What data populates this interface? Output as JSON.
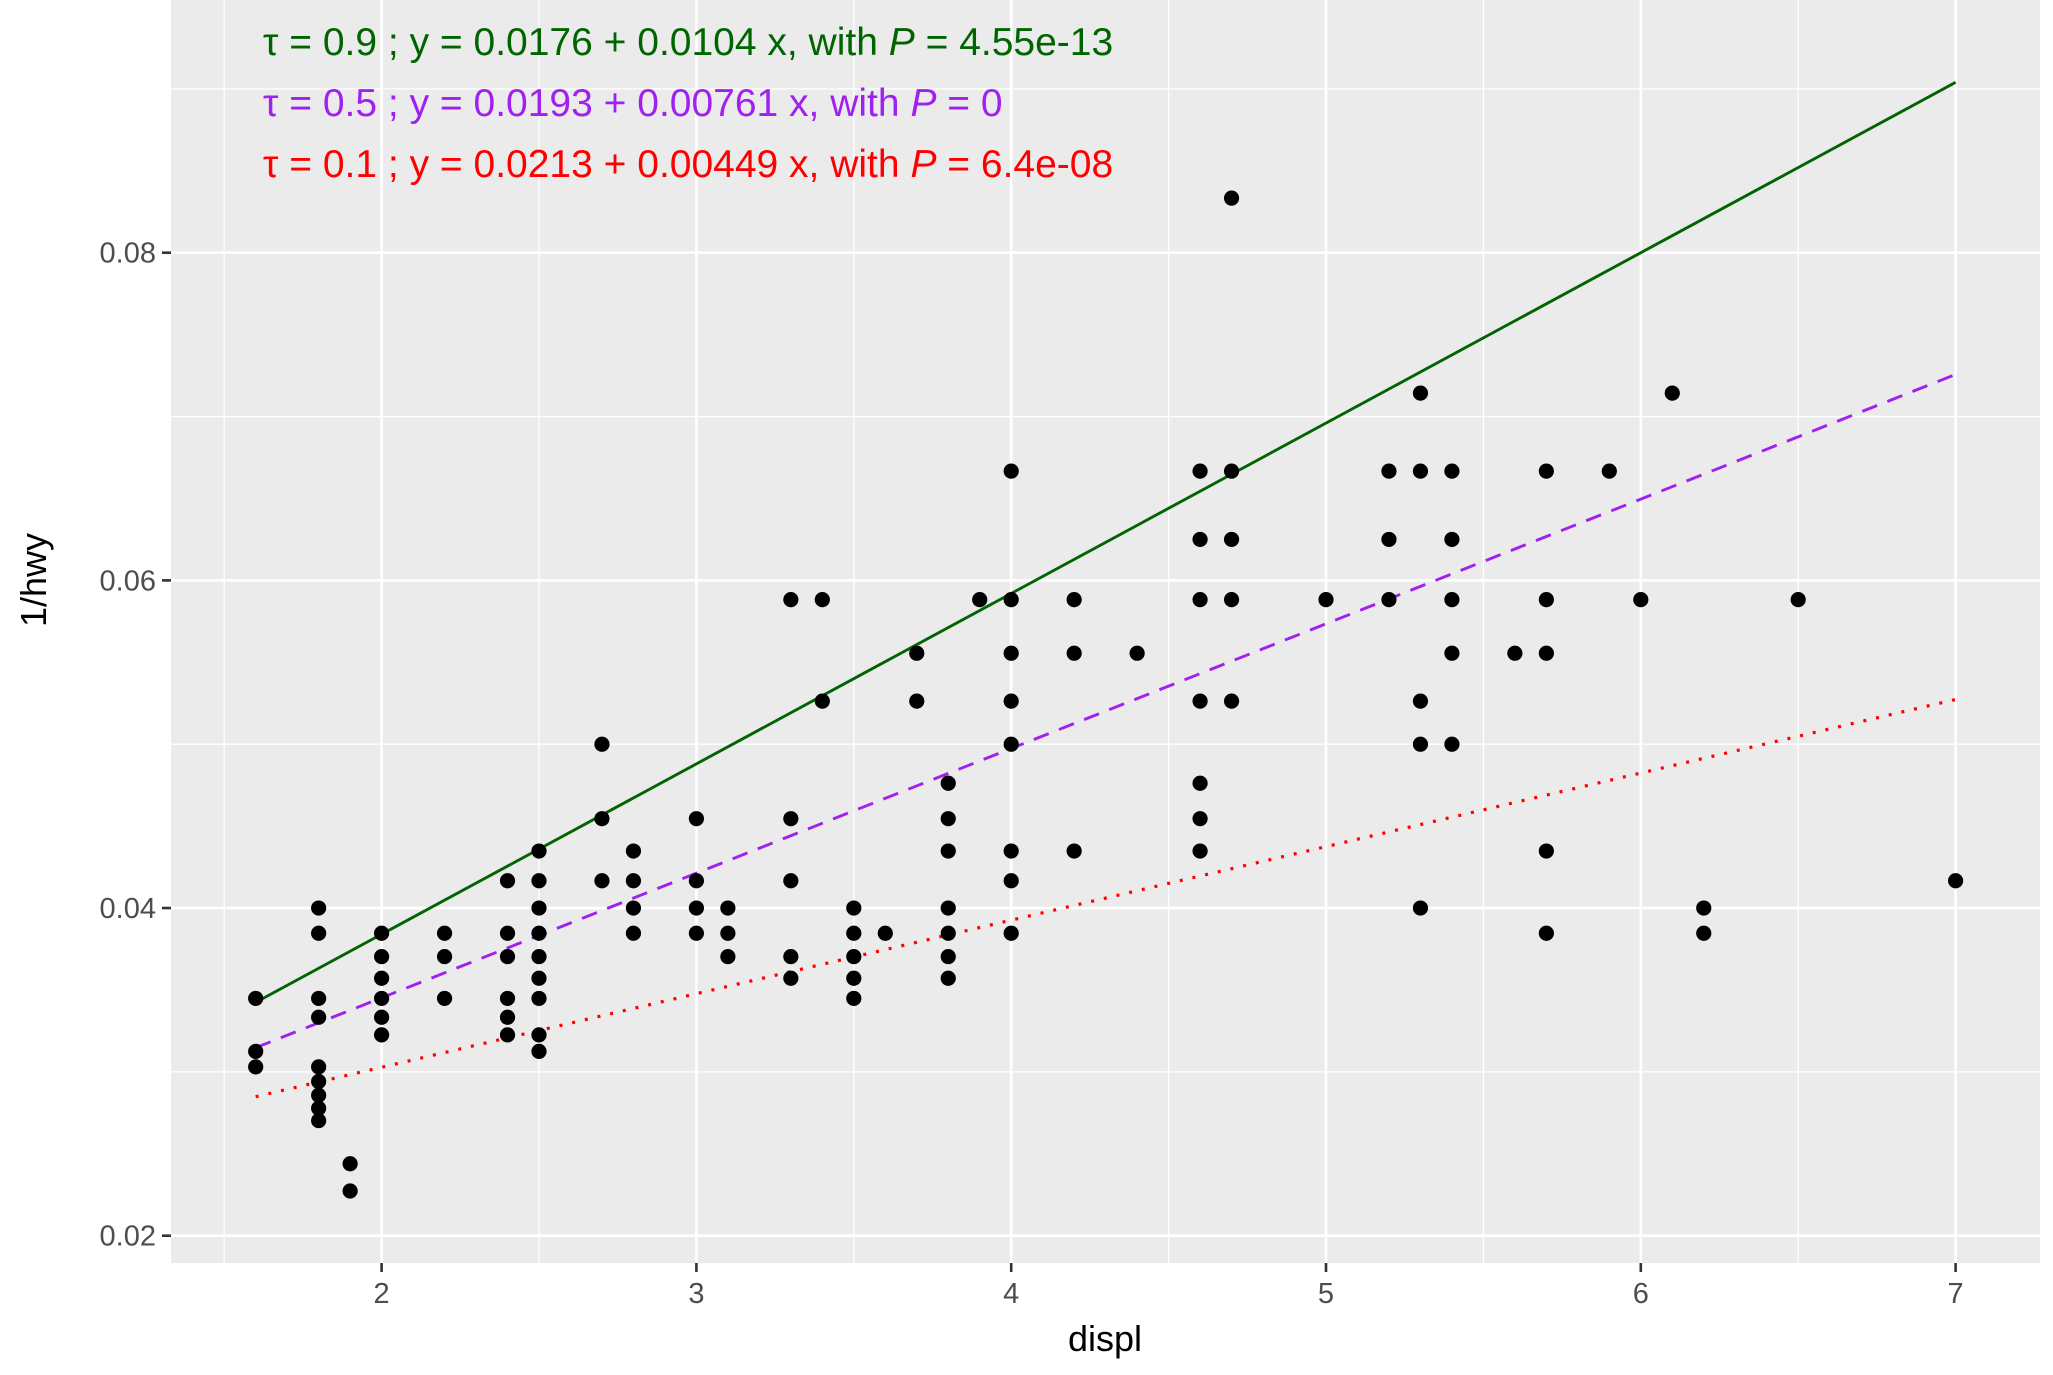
{
  "chart_data": {
    "type": "scatter",
    "title": "",
    "xlabel": "displ",
    "ylabel": "1/hwy",
    "xlim": [
      1.33,
      7.27
    ],
    "ylim": [
      0.0183,
      0.0933
    ],
    "x_ticks": [
      2,
      3,
      4,
      5,
      6,
      7
    ],
    "x_tick_labels": [
      "2",
      "3",
      "4",
      "5",
      "6",
      "7"
    ],
    "y_ticks": [
      0.02,
      0.04,
      0.06,
      0.08
    ],
    "y_tick_labels": [
      "0.02",
      "0.04",
      "0.06",
      "0.08"
    ],
    "grid": true,
    "legend": "none",
    "background": "#EBEBEB",
    "points_note": "y = 1/hwy for unique (displ, hwy) pairs",
    "points": [
      [
        1.6,
        29
      ],
      [
        1.6,
        32
      ],
      [
        1.6,
        33
      ],
      [
        1.8,
        25
      ],
      [
        1.8,
        26
      ],
      [
        1.8,
        29
      ],
      [
        1.8,
        30
      ],
      [
        1.8,
        33
      ],
      [
        1.8,
        34
      ],
      [
        1.8,
        35
      ],
      [
        1.8,
        36
      ],
      [
        1.8,
        37
      ],
      [
        1.9,
        41
      ],
      [
        1.9,
        44
      ],
      [
        2.0,
        26
      ],
      [
        2.0,
        27
      ],
      [
        2.0,
        28
      ],
      [
        2.0,
        29
      ],
      [
        2.0,
        30
      ],
      [
        2.0,
        31
      ],
      [
        2.2,
        26
      ],
      [
        2.2,
        27
      ],
      [
        2.2,
        29
      ],
      [
        2.4,
        24
      ],
      [
        2.4,
        26
      ],
      [
        2.4,
        27
      ],
      [
        2.4,
        29
      ],
      [
        2.4,
        30
      ],
      [
        2.4,
        31
      ],
      [
        2.5,
        23
      ],
      [
        2.5,
        24
      ],
      [
        2.5,
        25
      ],
      [
        2.5,
        26
      ],
      [
        2.5,
        27
      ],
      [
        2.5,
        28
      ],
      [
        2.5,
        29
      ],
      [
        2.5,
        31
      ],
      [
        2.5,
        32
      ],
      [
        2.7,
        20
      ],
      [
        2.7,
        22
      ],
      [
        2.7,
        24
      ],
      [
        2.8,
        23
      ],
      [
        2.8,
        24
      ],
      [
        2.8,
        25
      ],
      [
        2.8,
        26
      ],
      [
        3.0,
        22
      ],
      [
        3.0,
        24
      ],
      [
        3.0,
        25
      ],
      [
        3.0,
        26
      ],
      [
        3.1,
        25
      ],
      [
        3.1,
        26
      ],
      [
        3.1,
        27
      ],
      [
        3.3,
        17
      ],
      [
        3.3,
        22
      ],
      [
        3.3,
        24
      ],
      [
        3.3,
        27
      ],
      [
        3.3,
        28
      ],
      [
        3.4,
        17
      ],
      [
        3.4,
        19
      ],
      [
        3.5,
        25
      ],
      [
        3.5,
        26
      ],
      [
        3.5,
        27
      ],
      [
        3.5,
        28
      ],
      [
        3.5,
        29
      ],
      [
        3.6,
        26
      ],
      [
        3.7,
        18
      ],
      [
        3.7,
        19
      ],
      [
        3.8,
        21
      ],
      [
        3.8,
        22
      ],
      [
        3.8,
        23
      ],
      [
        3.8,
        25
      ],
      [
        3.8,
        26
      ],
      [
        3.8,
        27
      ],
      [
        3.8,
        28
      ],
      [
        3.9,
        17
      ],
      [
        4.0,
        15
      ],
      [
        4.0,
        17
      ],
      [
        4.0,
        18
      ],
      [
        4.0,
        19
      ],
      [
        4.0,
        20
      ],
      [
        4.0,
        23
      ],
      [
        4.0,
        24
      ],
      [
        4.0,
        26
      ],
      [
        4.2,
        17
      ],
      [
        4.2,
        18
      ],
      [
        4.2,
        23
      ],
      [
        4.4,
        18
      ],
      [
        4.6,
        15
      ],
      [
        4.6,
        16
      ],
      [
        4.6,
        17
      ],
      [
        4.6,
        19
      ],
      [
        4.6,
        21
      ],
      [
        4.6,
        22
      ],
      [
        4.6,
        23
      ],
      [
        4.7,
        12
      ],
      [
        4.7,
        15
      ],
      [
        4.7,
        16
      ],
      [
        4.7,
        17
      ],
      [
        4.7,
        19
      ],
      [
        5.0,
        17
      ],
      [
        5.2,
        15
      ],
      [
        5.2,
        16
      ],
      [
        5.2,
        17
      ],
      [
        5.3,
        14
      ],
      [
        5.3,
        15
      ],
      [
        5.3,
        19
      ],
      [
        5.3,
        20
      ],
      [
        5.3,
        25
      ],
      [
        5.4,
        15
      ],
      [
        5.4,
        16
      ],
      [
        5.4,
        17
      ],
      [
        5.4,
        18
      ],
      [
        5.4,
        20
      ],
      [
        5.6,
        18
      ],
      [
        5.7,
        15
      ],
      [
        5.7,
        17
      ],
      [
        5.7,
        18
      ],
      [
        5.7,
        23
      ],
      [
        5.7,
        26
      ],
      [
        5.9,
        15
      ],
      [
        6.0,
        17
      ],
      [
        6.1,
        14
      ],
      [
        6.2,
        25
      ],
      [
        6.2,
        26
      ],
      [
        6.5,
        17
      ],
      [
        7.0,
        24
      ]
    ],
    "series": [
      {
        "name": "tau = 0.9",
        "tau": 0.9,
        "intercept": 0.0176,
        "slope": 0.0104,
        "p_value": "4.55e-13",
        "color": "#006400",
        "linetype": "solid",
        "x_range": [
          1.6,
          7.0
        ]
      },
      {
        "name": "tau = 0.5",
        "tau": 0.5,
        "intercept": 0.0193,
        "slope": 0.00761,
        "p_value": "0",
        "color": "#A020F0",
        "linetype": "dashed",
        "x_range": [
          1.6,
          7.0
        ]
      },
      {
        "name": "tau = 0.1",
        "tau": 0.1,
        "intercept": 0.0213,
        "slope": 0.00449,
        "p_value": "6.4e-08",
        "color": "#FF0000",
        "linetype": "dotted",
        "x_range": [
          1.6,
          7.0
        ]
      }
    ],
    "annotations": [
      {
        "prefix": "τ = 0.9 ; y = 0.0176 + 0.0104 x, with ",
        "p_label": "P",
        "suffix": " = 4.55e-13",
        "color": "#006400"
      },
      {
        "prefix": "τ = 0.5 ; y = 0.0193 + 0.00761 x, with ",
        "p_label": "P",
        "suffix": " = 0",
        "color": "#A020F0"
      },
      {
        "prefix": "τ = 0.1 ; y = 0.0213 + 0.00449 x, with ",
        "p_label": "P",
        "suffix": " = 6.4e-08",
        "color": "#FF0000"
      }
    ]
  }
}
